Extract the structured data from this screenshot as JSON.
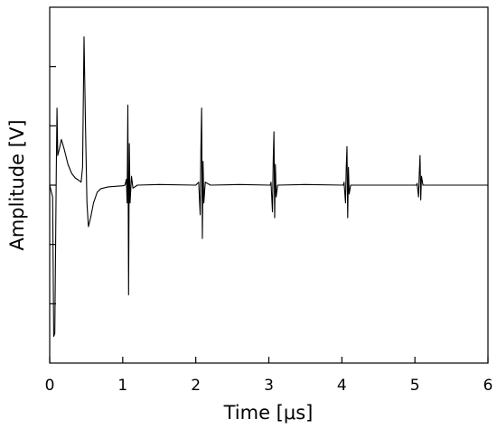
{
  "chart_data": {
    "type": "line",
    "xlabel": "Time [μs]",
    "ylabel": "Amplitude [V]",
    "color": "#000000",
    "xlim": [
      0,
      6
    ],
    "xticks": [
      0,
      1,
      2,
      3,
      4,
      5,
      6
    ],
    "ylim": [
      -3,
      3
    ],
    "yticks": [
      -2,
      -1,
      0,
      1,
      2
    ],
    "ytick_labels": false,
    "x": [
      0,
      0.04,
      0.055,
      0.07,
      0.09,
      0.1,
      0.11,
      0.13,
      0.16,
      0.2,
      0.25,
      0.3,
      0.35,
      0.4,
      0.43,
      0.45,
      0.47,
      0.49,
      0.51,
      0.53,
      0.56,
      0.6,
      0.65,
      0.7,
      0.8,
      0.9,
      1.0,
      1.03,
      1.05,
      1.06,
      1.07,
      1.08,
      1.09,
      1.1,
      1.12,
      1.14,
      1.2,
      1.5,
      2.0,
      2.04,
      2.06,
      2.07,
      2.08,
      2.09,
      2.1,
      2.11,
      2.13,
      2.2,
      2.6,
      3.02,
      3.03,
      3.05,
      3.06,
      3.07,
      3.08,
      3.09,
      3.1,
      3.12,
      3.5,
      4.02,
      4.03,
      4.05,
      4.06,
      4.07,
      4.08,
      4.09,
      4.1,
      4.12,
      4.5,
      5.02,
      5.03,
      5.05,
      5.06,
      5.07,
      5.08,
      5.09,
      5.11,
      5.5,
      6.0
    ],
    "values": [
      0,
      -0.2,
      -2.55,
      -2.5,
      0.2,
      1.3,
      0.5,
      0.6,
      0.77,
      0.6,
      0.35,
      0.2,
      0.12,
      0.08,
      0.05,
      0.3,
      2.5,
      1.0,
      -0.3,
      -0.7,
      -0.55,
      -0.3,
      -0.12,
      -0.06,
      -0.03,
      -0.02,
      -0.01,
      0,
      0.1,
      -0.3,
      1.35,
      -1.85,
      0.7,
      -0.3,
      0.15,
      -0.05,
      0,
      0.01,
      0,
      0.05,
      -0.5,
      0.6,
      1.3,
      -0.9,
      0.4,
      -0.3,
      0.05,
      0,
      0.01,
      0,
      0.05,
      -0.45,
      0.4,
      0.9,
      -0.55,
      0.35,
      -0.2,
      0,
      0.01,
      0,
      0.05,
      -0.3,
      0.3,
      0.65,
      -0.55,
      0.3,
      -0.15,
      0,
      0,
      0,
      0.03,
      -0.2,
      0.2,
      0.5,
      -0.25,
      0.15,
      0,
      0,
      0
    ]
  }
}
